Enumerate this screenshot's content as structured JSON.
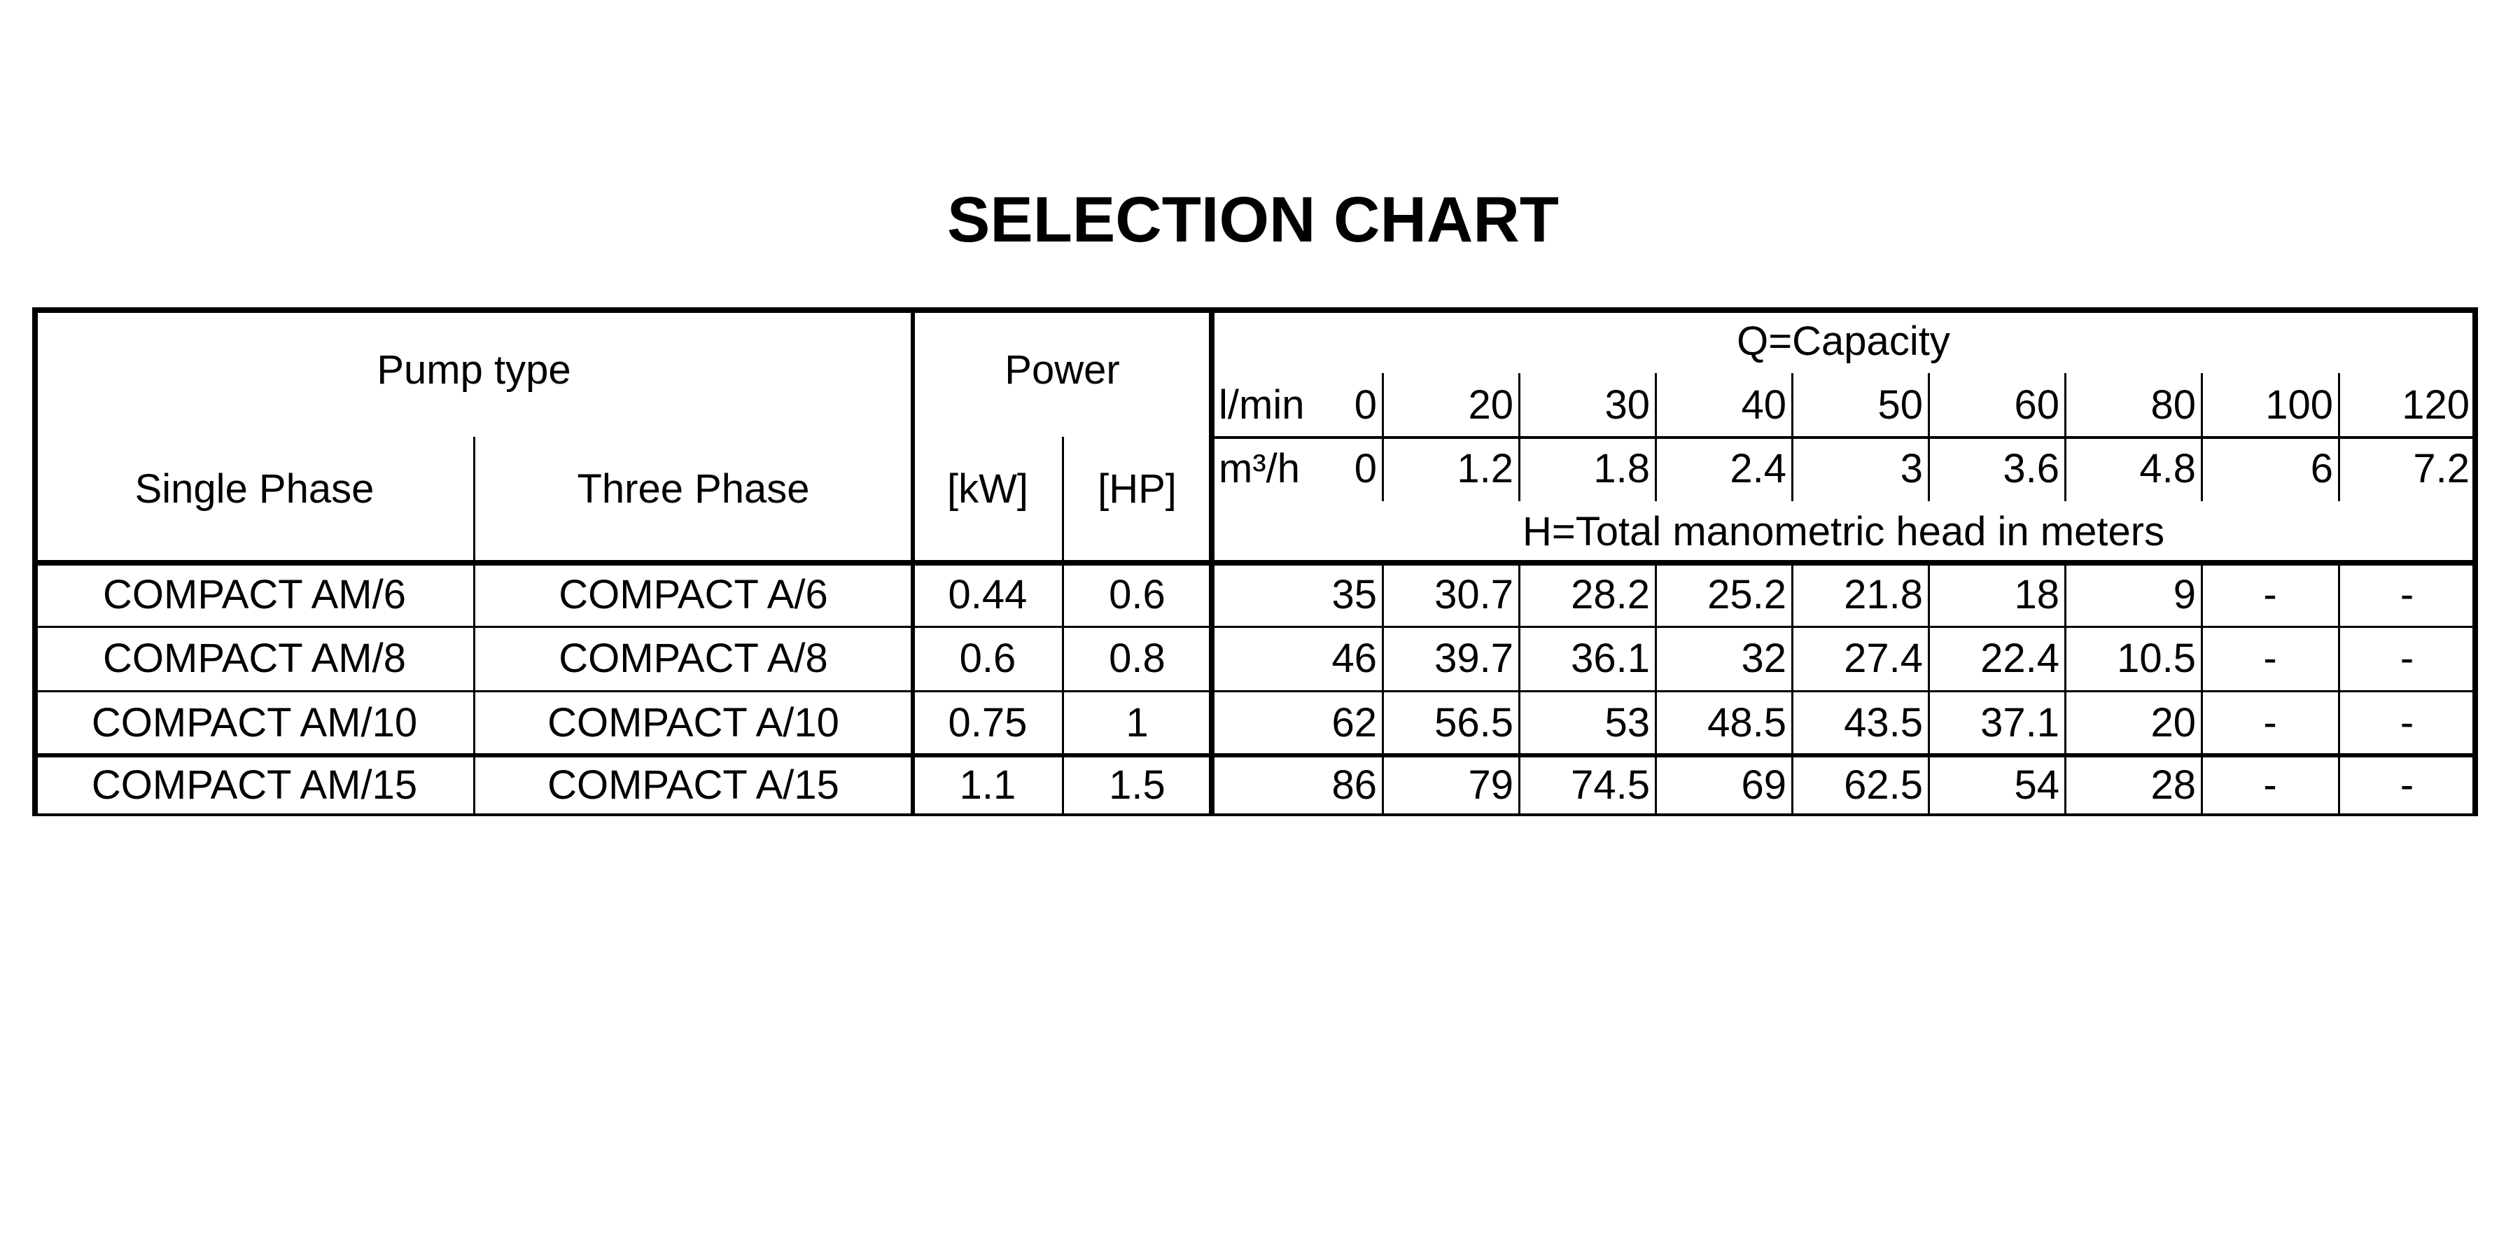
{
  "title": "SELECTION CHART",
  "header": {
    "pump_type": "Pump type",
    "single_phase": "Single Phase",
    "three_phase": "Three Phase",
    "power": "Power",
    "kw": "[kW]",
    "hp": "[HP]",
    "capacity": "Q=Capacity",
    "lmin_label": "l/min",
    "m3h_label": "m³/h",
    "head": "H=Total manometric head in meters",
    "lmin": [
      "0",
      "20",
      "30",
      "40",
      "50",
      "60",
      "80",
      "100",
      "120"
    ],
    "m3h": [
      "0",
      "1.2",
      "1.8",
      "2.4",
      "3",
      "3.6",
      "4.8",
      "6",
      "7.2"
    ]
  },
  "rows": [
    {
      "single": "COMPACT AM/6",
      "three": "COMPACT A/6",
      "kw": "0.44",
      "hp": "0.6",
      "head": [
        "35",
        "30.7",
        "28.2",
        "25.2",
        "21.8",
        "18",
        "9",
        "-",
        "-"
      ]
    },
    {
      "single": "COMPACT AM/8",
      "three": "COMPACT A/8",
      "kw": "0.6",
      "hp": "0.8",
      "head": [
        "46",
        "39.7",
        "36.1",
        "32",
        "27.4",
        "22.4",
        "10.5",
        "-",
        "-"
      ]
    },
    {
      "single": "COMPACT AM/10",
      "three": "COMPACT A/10",
      "kw": "0.75",
      "hp": "1",
      "head": [
        "62",
        "56.5",
        "53",
        "48.5",
        "43.5",
        "37.1",
        "20",
        "-",
        "-"
      ]
    },
    {
      "single": "COMPACT AM/15",
      "three": "COMPACT A/15",
      "kw": "1.1",
      "hp": "1.5",
      "head": [
        "86",
        "79",
        "74.5",
        "69",
        "62.5",
        "54",
        "28",
        "-",
        "-"
      ]
    }
  ]
}
